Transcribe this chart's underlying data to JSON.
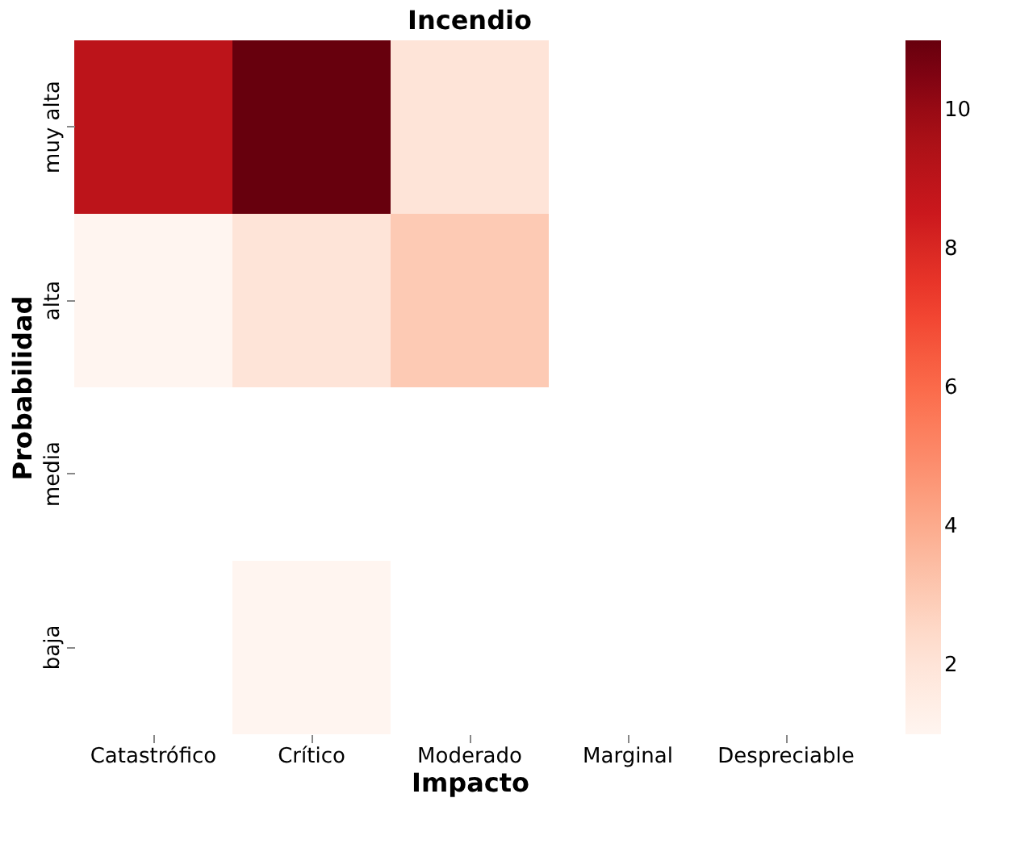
{
  "chart_data": {
    "type": "heatmap",
    "title": "Incendio",
    "xlabel": "Impacto",
    "ylabel": "Probabilidad",
    "categories": [
      "Catastrófico",
      "Crítico",
      "Moderado",
      "Marginal",
      "Despreciable"
    ],
    "y_categories": [
      "muy alta",
      "alta",
      "media",
      "baja"
    ],
    "cells": [
      [
        9,
        11,
        2,
        null,
        null
      ],
      [
        1,
        2,
        3,
        null,
        null
      ],
      [
        null,
        null,
        null,
        null,
        null
      ],
      [
        null,
        1,
        null,
        null,
        null
      ]
    ],
    "clim": [
      1,
      11
    ],
    "cticks": [
      2,
      4,
      6,
      8,
      10
    ]
  }
}
